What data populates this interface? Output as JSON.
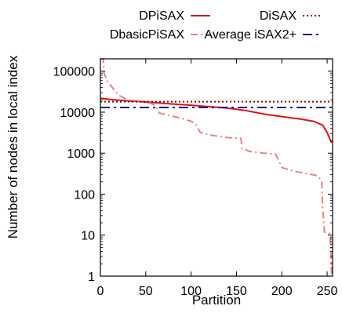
{
  "chart_data": {
    "type": "line",
    "xlabel": "Partition",
    "ylabel": "Number of nodes in local index",
    "xlim": [
      0,
      256
    ],
    "ylim": [
      1,
      200000
    ],
    "yscale": "log",
    "xticks": [
      0,
      50,
      100,
      150,
      200,
      250
    ],
    "yticks": [
      1,
      10,
      100,
      1000,
      10000,
      100000
    ],
    "ytick_labels": [
      "1",
      "10",
      "100",
      "1000",
      "10000",
      "100000"
    ],
    "grid": false,
    "legend_position": "top (outside plot, two columns)",
    "series": [
      {
        "name": "DPiSAX",
        "color": "#e01010",
        "style": "solid",
        "points": [
          [
            0,
            22000
          ],
          [
            10,
            20500
          ],
          [
            20,
            19500
          ],
          [
            40,
            18300
          ],
          [
            60,
            17000
          ],
          [
            80,
            15800
          ],
          [
            100,
            14800
          ],
          [
            120,
            13600
          ],
          [
            140,
            12600
          ],
          [
            160,
            11000
          ],
          [
            180,
            9000
          ],
          [
            200,
            7800
          ],
          [
            220,
            6800
          ],
          [
            235,
            6000
          ],
          [
            245,
            4800
          ],
          [
            250,
            3200
          ],
          [
            253,
            2200
          ],
          [
            255,
            1800
          ]
        ]
      },
      {
        "name": "DbasicPiSAX",
        "color": "#f08080",
        "style": "dash-dot",
        "points": [
          [
            0,
            200000
          ],
          [
            3,
            200000
          ],
          [
            4,
            90000
          ],
          [
            8,
            55000
          ],
          [
            14,
            38000
          ],
          [
            20,
            26000
          ],
          [
            30,
            20000
          ],
          [
            50,
            18000
          ],
          [
            58,
            15500
          ],
          [
            62,
            13000
          ],
          [
            65,
            9500
          ],
          [
            75,
            8500
          ],
          [
            90,
            7000
          ],
          [
            100,
            6000
          ],
          [
            105,
            5200
          ],
          [
            110,
            3200
          ],
          [
            120,
            2800
          ],
          [
            140,
            2400
          ],
          [
            155,
            2300
          ],
          [
            156,
            1300
          ],
          [
            165,
            1100
          ],
          [
            180,
            1000
          ],
          [
            193,
            950
          ],
          [
            196,
            700
          ],
          [
            200,
            450
          ],
          [
            210,
            380
          ],
          [
            220,
            340
          ],
          [
            230,
            310
          ],
          [
            240,
            280
          ],
          [
            244,
            200
          ],
          [
            245,
            50
          ],
          [
            247,
            12
          ],
          [
            250,
            11
          ],
          [
            252,
            11
          ],
          [
            253,
            11
          ],
          [
            254,
            5
          ],
          [
            255,
            1
          ]
        ]
      },
      {
        "name": "DiSAX",
        "color": "#8b0000",
        "style": "dotted",
        "points": [
          [
            0,
            18000
          ],
          [
            256,
            18000
          ]
        ]
      },
      {
        "name": "Average iSAX2+",
        "color": "#1a1aa0",
        "style": "dash-dot-long",
        "points": [
          [
            0,
            13000
          ],
          [
            256,
            13000
          ]
        ]
      }
    ]
  }
}
